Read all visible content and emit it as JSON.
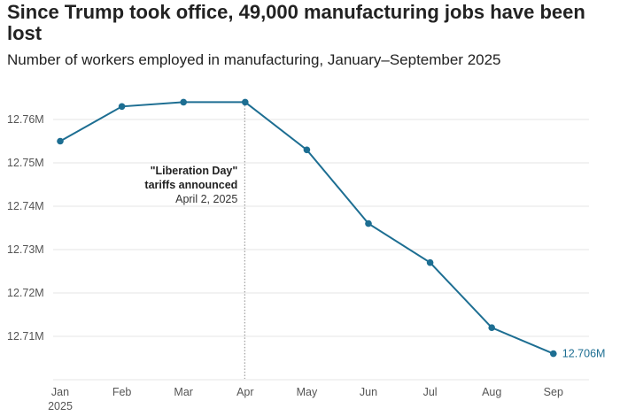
{
  "chart_data": {
    "type": "line",
    "title": "Since Trump took office, 49,000 manufacturing jobs have been lost",
    "subtitle": "Number of workers employed in manufacturing, January–September 2025",
    "categories": [
      "Jan",
      "Feb",
      "Mar",
      "Apr",
      "May",
      "Jun",
      "Jul",
      "Aug",
      "Sep"
    ],
    "x_year_label": "2025",
    "values": [
      12.755,
      12.763,
      12.764,
      12.764,
      12.753,
      12.736,
      12.727,
      12.712,
      12.706
    ],
    "unit": "M",
    "yticks": [
      12.71,
      12.72,
      12.73,
      12.74,
      12.75,
      12.76
    ],
    "ytick_labels": [
      "12.71M",
      "12.72M",
      "12.73M",
      "12.74M",
      "12.75M",
      "12.76M"
    ],
    "ylim": [
      12.7,
      12.766
    ],
    "grid": true,
    "end_label": "12.706M",
    "annotation": {
      "at": "Apr",
      "line1": "\"Liberation Day\"",
      "line2": "tariffs announced",
      "line3": "April 2, 2025"
    },
    "line_color": "#1d6e92"
  }
}
